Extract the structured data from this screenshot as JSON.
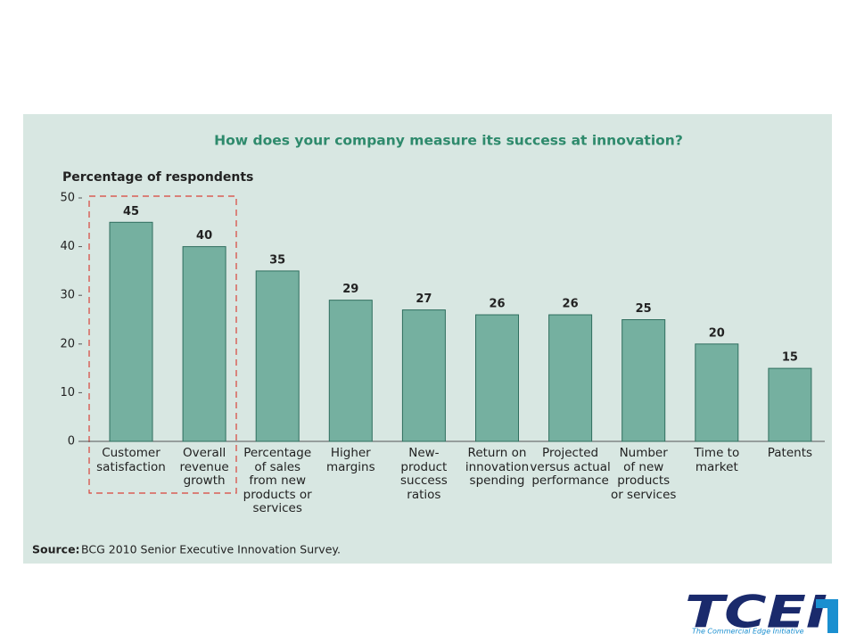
{
  "chart_data": {
    "type": "bar",
    "title": "How does your company measure its success at innovation?",
    "y_label": "Percentage of respondents",
    "categories": [
      "Customer\nsatisfaction",
      "Overall\nrevenue\ngrowth",
      "Percentage\nof sales\nfrom new\nproducts or\nservices",
      "Higher\nmargins",
      "New-\nproduct\nsuccess\nratios",
      "Return on\ninnovation\nspending",
      "Projected\nversus actual\nperformance",
      "Number\nof new\nproducts\nor services",
      "Time to\nmarket",
      "Patents"
    ],
    "values": [
      45,
      40,
      35,
      29,
      27,
      26,
      26,
      25,
      20,
      15
    ],
    "color": "#75b0a0",
    "ylim": [
      0,
      50
    ],
    "yticks": [
      0,
      10,
      20,
      30,
      40,
      50
    ],
    "source_label": "Source:",
    "source": "BCG 2010 Senior Executive Innovation Survey."
  },
  "logo": {
    "text": "TCEI",
    "tagline": "The Commercial Edge Initiative"
  }
}
